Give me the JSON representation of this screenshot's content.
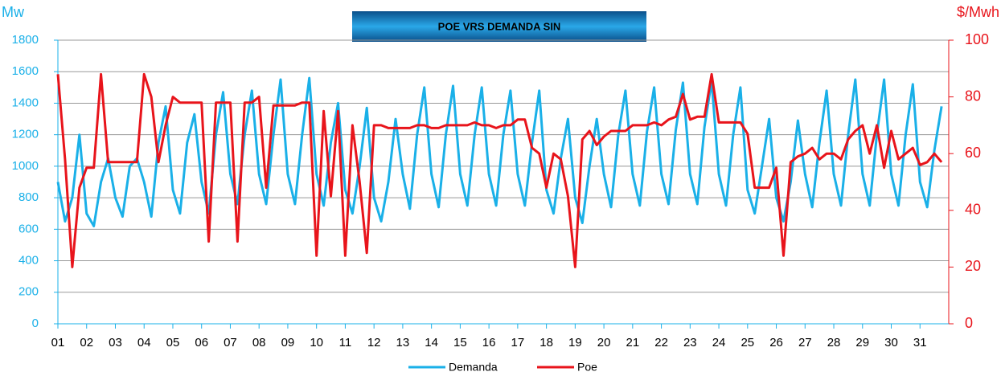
{
  "chart_data": {
    "type": "line",
    "title": "POE VRS DEMANDA SIN",
    "ylabel": "Mw",
    "y2label": "$/Mwh",
    "xlim": [
      1,
      32
    ],
    "xticks": [
      {
        "value": 1,
        "label": "01"
      },
      {
        "value": 2,
        "label": "02"
      },
      {
        "value": 3,
        "label": "03"
      },
      {
        "value": 4,
        "label": "04"
      },
      {
        "value": 5,
        "label": "05"
      },
      {
        "value": 6,
        "label": "06"
      },
      {
        "value": 7,
        "label": "07"
      },
      {
        "value": 8,
        "label": "08"
      },
      {
        "value": 9,
        "label": "09"
      },
      10,
      11,
      12,
      13,
      14,
      15,
      16,
      17,
      18,
      19,
      20,
      21,
      22,
      23,
      24,
      25,
      26,
      27,
      28,
      29,
      30,
      31
    ],
    "ylim": [
      0,
      1800
    ],
    "yticks": [
      0,
      200,
      400,
      600,
      800,
      1000,
      1200,
      1400,
      1600,
      1800
    ],
    "y2lim": [
      0,
      100
    ],
    "y2ticks": [
      0,
      20,
      40,
      60,
      80,
      100
    ],
    "grid": true,
    "x": [
      1,
      1.25,
      1.5,
      1.75,
      2,
      2.25,
      2.5,
      2.75,
      3,
      3.25,
      3.5,
      3.75,
      4,
      4.25,
      4.5,
      4.75,
      5,
      5.25,
      5.5,
      5.75,
      6,
      6.25,
      6.5,
      6.75,
      7,
      7.25,
      7.5,
      7.75,
      8,
      8.25,
      8.5,
      8.75,
      9,
      9.25,
      9.5,
      9.75,
      10,
      10.25,
      10.5,
      10.75,
      11,
      11.25,
      11.5,
      11.75,
      12,
      12.25,
      12.5,
      12.75,
      13,
      13.25,
      13.5,
      13.75,
      14,
      14.25,
      14.5,
      14.75,
      15,
      15.25,
      15.5,
      15.75,
      16,
      16.25,
      16.5,
      16.75,
      17,
      17.25,
      17.5,
      17.75,
      18,
      18.25,
      18.5,
      18.75,
      19,
      19.25,
      19.5,
      19.75,
      20,
      20.25,
      20.5,
      20.75,
      21,
      21.25,
      21.5,
      21.75,
      22,
      22.25,
      22.5,
      22.75,
      23,
      23.25,
      23.5,
      23.75,
      24,
      24.25,
      24.5,
      24.75,
      25,
      25.25,
      25.5,
      25.75,
      26,
      26.25,
      26.5,
      26.75,
      27,
      27.25,
      27.5,
      27.75,
      28,
      28.25,
      28.5,
      28.75,
      29,
      29.25,
      29.5,
      29.75,
      30,
      30.25,
      30.5,
      30.75,
      31,
      31.25,
      31.5,
      31.75
    ],
    "series": [
      {
        "name": "Demanda",
        "color": "#1ab0e8",
        "values": [
          900,
          650,
          800,
          1200,
          700,
          620,
          900,
          1050,
          800,
          680,
          1000,
          1050,
          900,
          680,
          1150,
          1380,
          850,
          700,
          1150,
          1330,
          900,
          700,
          1200,
          1470,
          950,
          760,
          1200,
          1480,
          950,
          760,
          1200,
          1550,
          950,
          760,
          1200,
          1560,
          950,
          750,
          1150,
          1400,
          850,
          700,
          1000,
          1370,
          800,
          650,
          900,
          1300,
          950,
          730,
          1200,
          1500,
          950,
          740,
          1200,
          1510,
          950,
          750,
          1200,
          1500,
          950,
          750,
          1200,
          1480,
          950,
          750,
          1150,
          1480,
          850,
          700,
          1050,
          1300,
          800,
          640,
          1000,
          1300,
          950,
          740,
          1200,
          1480,
          950,
          750,
          1220,
          1500,
          950,
          760,
          1230,
          1530,
          950,
          760,
          1250,
          1540,
          950,
          750,
          1200,
          1500,
          850,
          700,
          1000,
          1300,
          800,
          650,
          900,
          1290,
          950,
          740,
          1150,
          1480,
          950,
          750,
          1200,
          1550,
          950,
          750,
          1200,
          1550,
          950,
          750,
          1200,
          1520,
          900,
          740,
          1100,
          1380
        ]
      },
      {
        "name": "Poe",
        "color": "#e8141b",
        "axis": "y2",
        "values": [
          88,
          58,
          20,
          48,
          55,
          55,
          88,
          57,
          57,
          57,
          57,
          57,
          88,
          80,
          57,
          70,
          80,
          78,
          78,
          78,
          78,
          29,
          78,
          78,
          78,
          29,
          78,
          78,
          80,
          48,
          77,
          77,
          77,
          77,
          78,
          78,
          24,
          75,
          45,
          75,
          24,
          70,
          50,
          25,
          70,
          70,
          69,
          69,
          69,
          69,
          70,
          70,
          69,
          69,
          70,
          70,
          70,
          70,
          71,
          70,
          70,
          69,
          70,
          70,
          72,
          72,
          62,
          60,
          48,
          60,
          58,
          45,
          20,
          65,
          68,
          63,
          66,
          68,
          68,
          68,
          70,
          70,
          70,
          71,
          70,
          72,
          73,
          81,
          72,
          73,
          73,
          88,
          71,
          71,
          71,
          71,
          67,
          48,
          48,
          48,
          55,
          24,
          57,
          59,
          60,
          62,
          58,
          60,
          60,
          58,
          65,
          68,
          70,
          60,
          70,
          55,
          68,
          58,
          60,
          62,
          56,
          57,
          60,
          57
        ]
      }
    ]
  }
}
